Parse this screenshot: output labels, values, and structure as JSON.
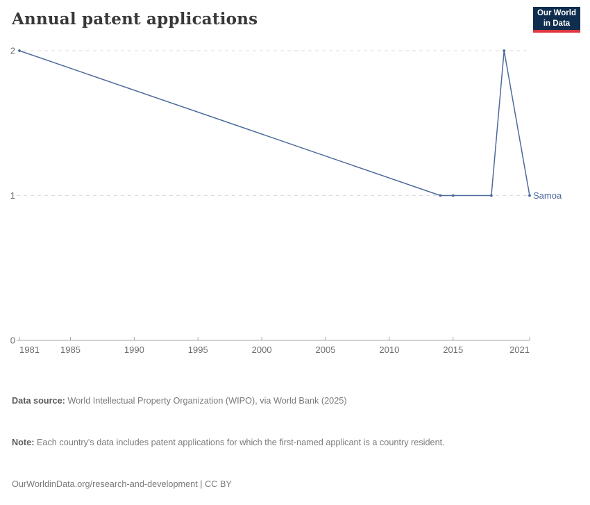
{
  "header": {
    "title": "Annual patent applications"
  },
  "logo": {
    "line1": "Our World",
    "line2": "in Data",
    "bg_color": "#0f2d4e",
    "bar_color": "#e0363f"
  },
  "chart_data": {
    "type": "line",
    "title": "Annual patent applications",
    "entity_label": "Samoa",
    "x": [
      1981,
      2014,
      2015,
      2018,
      2019,
      2021
    ],
    "series": [
      {
        "name": "Samoa",
        "values": [
          2,
          1,
          1,
          1,
          2,
          1
        ]
      }
    ],
    "xticks": [
      1981,
      1985,
      1990,
      1995,
      2000,
      2005,
      2010,
      2015,
      2021
    ],
    "yticks": [
      0,
      1,
      2
    ],
    "xlim": [
      1981,
      2021
    ],
    "ylim": [
      0,
      2
    ],
    "grid": true,
    "legend_position": "right-of-line-end",
    "line_color": "#4c6a9c",
    "gridline_color": "#dcdcdc",
    "axis_color": "#a5a5a5",
    "tick_label_color": "#6e6e6e"
  },
  "footer": {
    "source_label": "Data source:",
    "source_text": " World Intellectual Property Organization (WIPO), via World Bank (2025)",
    "note_label": "Note:",
    "note_text": " Each country's data includes patent applications for which the first-named applicant is a country resident.",
    "url_text": "OurWorldinData.org/research-and-development",
    "cc_suffix": " | CC BY"
  }
}
